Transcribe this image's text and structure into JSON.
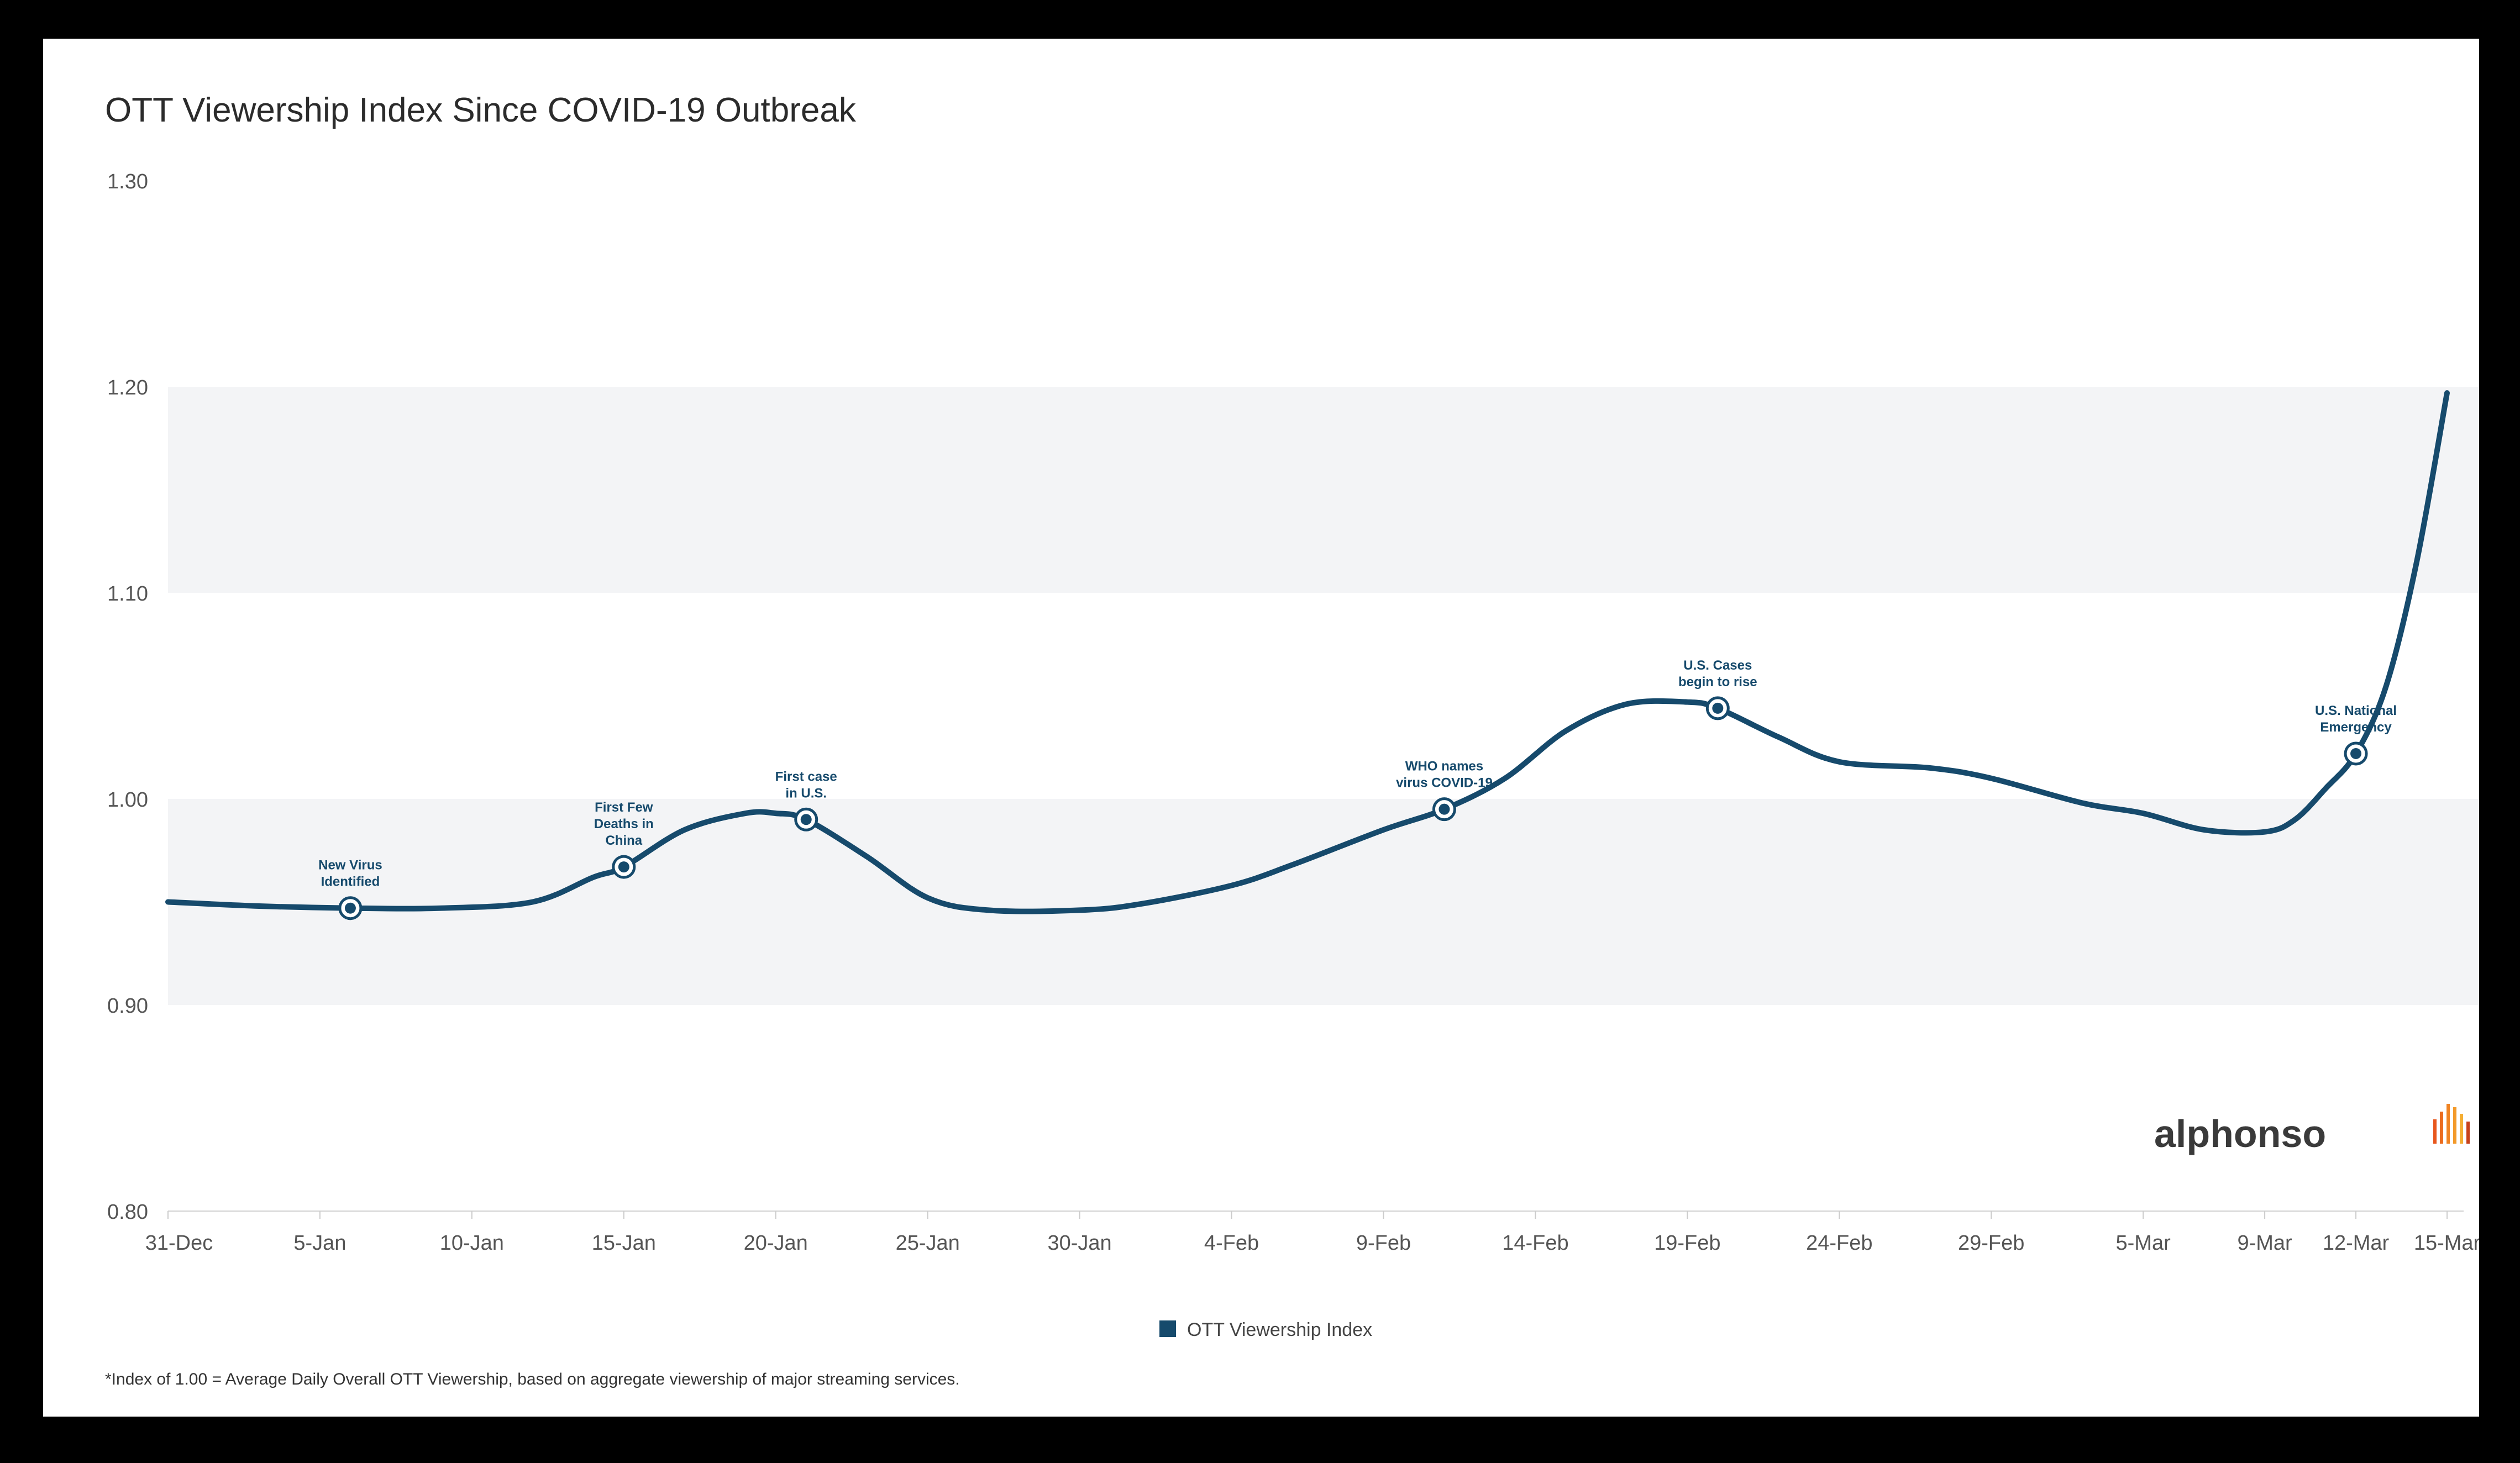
{
  "chart_data": {
    "type": "line",
    "title": "OTT Viewership Index Since COVID-19 Outbreak",
    "xlabel": "",
    "ylabel": "",
    "x_tick_labels": [
      "31-Dec",
      "5-Jan",
      "10-Jan",
      "15-Jan",
      "20-Jan",
      "25-Jan",
      "30-Jan",
      "4-Feb",
      "9-Feb",
      "14-Feb",
      "19-Feb",
      "24-Feb",
      "29-Feb",
      "5-Mar",
      "9-Mar",
      "12-Mar",
      "15-Mar"
    ],
    "y_ticks": [
      "0.80",
      "0.90",
      "1.00",
      "1.10",
      "1.20",
      "1.30"
    ],
    "ylim": [
      0.8,
      1.3
    ],
    "x_dates": [
      "Dec 31",
      "Jan 5",
      "Jan 10",
      "Jan 15",
      "Jan 20",
      "Jan 25",
      "Jan 30",
      "Feb 4",
      "Feb 9",
      "Feb 14",
      "Feb 19",
      "Feb 24",
      "Feb 29",
      "Mar 5",
      "Mar 9",
      "Mar 12",
      "Mar 15"
    ],
    "bands": [
      [
        0.9,
        1.0
      ],
      [
        1.1,
        1.2
      ]
    ],
    "grid": false,
    "series": [
      {
        "name": "OTT Viewership Index",
        "color": "#164a6c",
        "points": [
          [
            "Dec 31",
            0.95
          ],
          [
            "Jan 3",
            0.948
          ],
          [
            "Jan 6",
            0.947
          ],
          [
            "Jan 9",
            0.947
          ],
          [
            "Jan 12",
            0.95
          ],
          [
            "Jan 14",
            0.962
          ],
          [
            "Jan 15",
            0.967
          ],
          [
            "Jan 17",
            0.985
          ],
          [
            "Jan 19",
            0.993
          ],
          [
            "Jan 20",
            0.993
          ],
          [
            "Jan 21",
            0.99
          ],
          [
            "Jan 23",
            0.972
          ],
          [
            "Jan 25",
            0.952
          ],
          [
            "Jan 27",
            0.946
          ],
          [
            "Jan 30",
            0.946
          ],
          [
            "Feb 1",
            0.949
          ],
          [
            "Feb 4",
            0.958
          ],
          [
            "Feb 6",
            0.968
          ],
          [
            "Feb 9",
            0.985
          ],
          [
            "Feb 11",
            0.995
          ],
          [
            "Feb 13",
            1.01
          ],
          [
            "Feb 15",
            1.033
          ],
          [
            "Feb 17",
            1.046
          ],
          [
            "Feb 19",
            1.047
          ],
          [
            "Feb 20",
            1.044
          ],
          [
            "Feb 22",
            1.03
          ],
          [
            "Feb 24",
            1.018
          ],
          [
            "Feb 27",
            1.015
          ],
          [
            "Feb 29",
            1.01
          ],
          [
            "Mar 3",
            0.998
          ],
          [
            "Mar 5",
            0.993
          ],
          [
            "Mar 7",
            0.985
          ],
          [
            "Mar 9",
            0.984
          ],
          [
            "Mar 10",
            0.99
          ],
          [
            "Mar 11",
            1.005
          ],
          [
            "Mar 12",
            1.022
          ],
          [
            "Mar 13",
            1.055
          ],
          [
            "Mar 14",
            1.115
          ],
          [
            "Mar 15",
            1.197
          ]
        ]
      }
    ],
    "annotations": [
      {
        "x": "Jan 6",
        "y": 0.947,
        "lines": [
          "New Virus",
          "Identified"
        ]
      },
      {
        "x": "Jan 15",
        "y": 0.967,
        "lines": [
          "First Few",
          "Deaths in",
          "China"
        ]
      },
      {
        "x": "Jan 21",
        "y": 0.99,
        "lines": [
          "First case",
          "in U.S."
        ]
      },
      {
        "x": "Feb 11",
        "y": 0.995,
        "lines": [
          "WHO names",
          "virus COVID-19"
        ]
      },
      {
        "x": "Feb 20",
        "y": 1.044,
        "lines": [
          "U.S. Cases",
          "begin to rise"
        ]
      },
      {
        "x": "Mar 12",
        "y": 1.022,
        "lines": [
          "U.S. National",
          "Emergency"
        ]
      }
    ],
    "legend": {
      "position": "bottom-center",
      "label": "OTT Viewership Index"
    },
    "footnote": "*Index of 1.00 = Average Daily Overall OTT Viewership, based on aggregate viewership of major streaming services.",
    "brand": "alphonso",
    "brand_bar_colors": [
      "#e8571c",
      "#ec6d1f",
      "#f08424",
      "#f39a2a",
      "#f5ae33",
      "#c7411a"
    ]
  }
}
